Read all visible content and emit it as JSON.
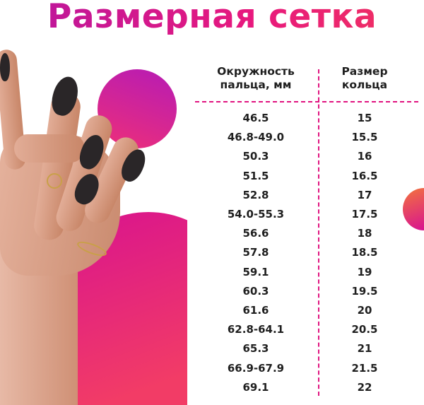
{
  "title": "Размерная сетка",
  "table": {
    "headers": [
      "Окружность пальца, мм",
      "Размер кольца"
    ],
    "header_lines": [
      [
        "Окружность",
        "пальца, мм"
      ],
      [
        "Размер",
        "кольца"
      ]
    ],
    "rows": [
      [
        "46.5",
        "15"
      ],
      [
        "46.8-49.0",
        "15.5"
      ],
      [
        "50.3",
        "16"
      ],
      [
        "51.5",
        "16.5"
      ],
      [
        "52.8",
        "17"
      ],
      [
        "54.0-55.3",
        "17.5"
      ],
      [
        "56.6",
        "18"
      ],
      [
        "57.8",
        "18.5"
      ],
      [
        "59.1",
        "19"
      ],
      [
        "60.3",
        "19.5"
      ],
      [
        "61.6",
        "20"
      ],
      [
        "62.8-64.1",
        "20.5"
      ],
      [
        "65.3",
        "21"
      ],
      [
        "66.9-67.9",
        "21.5"
      ],
      [
        "69.1",
        "22"
      ]
    ]
  },
  "colors": {
    "accent": "#e0137f",
    "gradient_start": "#b8169f",
    "gradient_end": "#f0345f",
    "text": "#1f1f1f"
  },
  "image": "hand-with-black-nails-and-rings"
}
